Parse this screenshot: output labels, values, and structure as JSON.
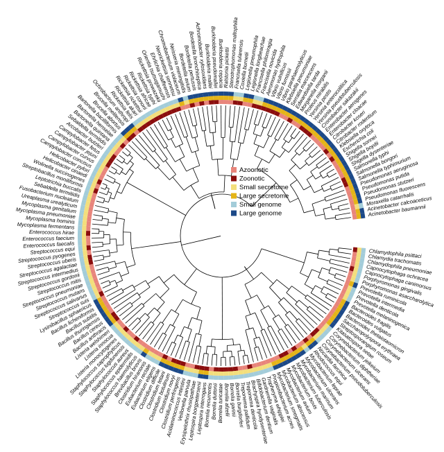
{
  "colors": {
    "azoonotic": "#e8857b",
    "zoonotic": "#8b0e0e",
    "small_secretome": "#f3de7c",
    "large_secretome": "#e4b418",
    "small_genome": "#a3ccd9",
    "large_genome": "#1c4988"
  },
  "legend": [
    {
      "label": "Azoonotic",
      "color": "#e8857b"
    },
    {
      "label": "Zoonotic",
      "color": "#8b0e0e"
    },
    {
      "label": "Small secretome",
      "color": "#f3de7c"
    },
    {
      "label": "Large secretome",
      "color": "#e4b418"
    },
    {
      "label": "Small genome",
      "color": "#a3ccd9"
    },
    {
      "label": "Large genome",
      "color": "#1c4988"
    }
  ],
  "taxa": [
    {
      "name": "Chlamydophila psittaci",
      "z": 1,
      "s": 0,
      "g": 0
    },
    {
      "name": "Chlamydia trachomatis",
      "z": 0,
      "s": 0,
      "g": 0
    },
    {
      "name": "Chlamydophila pneumoniae",
      "z": 0,
      "s": 0,
      "g": 0
    },
    {
      "name": "Capnocytophaga ochracea",
      "z": 0,
      "s": 0,
      "g": 0
    },
    {
      "name": "Capnocytophaga canimorsus",
      "z": 1,
      "s": 0,
      "g": 0
    },
    {
      "name": "Porphyromonas gingivalis",
      "z": 0,
      "s": 0,
      "g": 0
    },
    {
      "name": "Porphyromonas asaccharolytica",
      "z": 0,
      "s": 0,
      "g": 0
    },
    {
      "name": "Prevotella ruminicola",
      "z": 0,
      "s": 1,
      "g": 1
    },
    {
      "name": "Prevotella intermedia",
      "z": 0,
      "s": 0,
      "g": 0
    },
    {
      "name": "Prevotella denticola",
      "z": 0,
      "s": 0,
      "g": 0
    },
    {
      "name": "Prevotella melaninogenica",
      "z": 0,
      "s": 0,
      "g": 0
    },
    {
      "name": "Bacteroides fragilis",
      "z": 0,
      "s": 1,
      "g": 1
    },
    {
      "name": "Bacteroides vulgatus",
      "z": 0,
      "s": 1,
      "g": 1
    },
    {
      "name": "Bacteroides thetaiotaomicron",
      "z": 0,
      "s": 1,
      "g": 1
    },
    {
      "name": "Saccharopolyspora erythraea",
      "z": 0,
      "s": 1,
      "g": 1
    },
    {
      "name": "Streptosporangium roseum",
      "z": 0,
      "s": 1,
      "g": 1
    },
    {
      "name": "Kitasatospora setae",
      "z": 0,
      "s": 1,
      "g": 1
    },
    {
      "name": "Corynebacterium jeikeium",
      "z": 0,
      "s": 0,
      "g": 0
    },
    {
      "name": "Corynebacterium diphtheriae",
      "z": 0,
      "s": 0,
      "g": 0
    },
    {
      "name": "Corynebacterium ulcerans",
      "z": 1,
      "s": 0,
      "g": 0
    },
    {
      "name": "Corynebacterium pseudotuberculosis",
      "z": 1,
      "s": 0,
      "g": 0
    },
    {
      "name": "Nocardia farcinica",
      "z": 0,
      "s": 1,
      "g": 1
    },
    {
      "name": "Rhodococcus equi",
      "z": 1,
      "s": 1,
      "g": 1
    },
    {
      "name": "Mycobacterium leprae",
      "z": 0,
      "s": 0,
      "g": 0
    },
    {
      "name": "Mycobacterium ulcerans",
      "z": 0,
      "s": 1,
      "g": 1
    },
    {
      "name": "Mycobacterium marinum",
      "z": 1,
      "s": 1,
      "g": 1
    },
    {
      "name": "Mycobacterium tuberculosis",
      "z": 0,
      "s": 1,
      "g": 1
    },
    {
      "name": "Mycobacterium bovis",
      "z": 1,
      "s": 1,
      "g": 1
    },
    {
      "name": "Mycobacterium avium",
      "z": 1,
      "s": 1,
      "g": 1
    },
    {
      "name": "Mycobacterium abscessus",
      "z": 0,
      "s": 1,
      "g": 1
    },
    {
      "name": "Mycobacterium smegmatis",
      "z": 0,
      "s": 1,
      "g": 1
    },
    {
      "name": "Propionibacterium acnes",
      "z": 0,
      "s": 0,
      "g": 0
    },
    {
      "name": "Tropheryma whipplei",
      "z": 0,
      "s": 0,
      "g": 0
    },
    {
      "name": "Gardnerella vaginalis",
      "z": 0,
      "s": 0,
      "g": 0
    },
    {
      "name": "Bifidobacterium dentium",
      "z": 0,
      "s": 0,
      "g": 0
    },
    {
      "name": "Brachyspira hyodysenteriae",
      "z": 1,
      "s": 0,
      "g": 0
    },
    {
      "name": "Treponema denticola",
      "z": 0,
      "s": 0,
      "g": 0
    },
    {
      "name": "Treponema pallidum",
      "z": 0,
      "s": 0,
      "g": 0
    },
    {
      "name": "Borrelia burgdorferi",
      "z": 1,
      "s": 0,
      "g": 0
    },
    {
      "name": "Borrelia garinii",
      "z": 1,
      "s": 0,
      "g": 0
    },
    {
      "name": "Borrelia afzelii",
      "z": 1,
      "s": 0,
      "g": 0
    },
    {
      "name": "Borrelia turicatae",
      "z": 1,
      "s": 0,
      "g": 0
    },
    {
      "name": "Borrelia duttonii",
      "z": 1,
      "s": 0,
      "g": 0
    },
    {
      "name": "Borrelia recurrentis",
      "z": 0,
      "s": 0,
      "g": 0
    },
    {
      "name": "Leptospira interrogans",
      "z": 1,
      "s": 1,
      "g": 1
    },
    {
      "name": "Leptospira borgpetersenii",
      "z": 1,
      "s": 1,
      "g": 1
    },
    {
      "name": "Erysipelothrix rhusiopathiae",
      "z": 1,
      "s": 0,
      "g": 0
    },
    {
      "name": "Veillonella parvula",
      "z": 0,
      "s": 0,
      "g": 0
    },
    {
      "name": "Acidaminococcus intestini",
      "z": 0,
      "s": 0,
      "g": 0
    },
    {
      "name": "Clostridium perfringens",
      "z": 1,
      "s": 1,
      "g": 1
    },
    {
      "name": "Clostridium novyi",
      "z": 1,
      "s": 1,
      "g": 1
    },
    {
      "name": "Clostridium botulinum",
      "z": 1,
      "s": 1,
      "g": 1
    },
    {
      "name": "Clostridium tetani",
      "z": 0,
      "s": 1,
      "g": 1
    },
    {
      "name": "Clostridium difficile",
      "z": 1,
      "s": 1,
      "g": 1
    },
    {
      "name": "Eubacterium eligens",
      "z": 0,
      "s": 0,
      "g": 0
    },
    {
      "name": "Eubacterium rectale",
      "z": 0,
      "s": 0,
      "g": 0
    },
    {
      "name": "Clostridium hiranonis",
      "z": 0,
      "s": 0,
      "g": 0
    },
    {
      "name": "Brevibacillus brevis",
      "z": 0,
      "s": 1,
      "g": 1
    },
    {
      "name": "Staphylococcus haemolyticus",
      "z": 0,
      "s": 0,
      "g": 0
    },
    {
      "name": "Staphylococcus epidermidis",
      "z": 0,
      "s": 0,
      "g": 0
    },
    {
      "name": "Staphylococcus aureus",
      "z": 1,
      "s": 0,
      "g": 0
    },
    {
      "name": "Staphylococcus lugdunensis",
      "z": 0,
      "s": 0,
      "g": 0
    },
    {
      "name": "Staphylococcus saprophyticus",
      "z": 0,
      "s": 0,
      "g": 0
    },
    {
      "name": "Listeria monocytogenes",
      "z": 1,
      "s": 0,
      "g": 0
    },
    {
      "name": "Listeria innocua",
      "z": 0,
      "s": 0,
      "g": 0
    },
    {
      "name": "Listeria welshimeri",
      "z": 0,
      "s": 0,
      "g": 0
    },
    {
      "name": "Bacillus anthracis",
      "z": 1,
      "s": 1,
      "g": 1
    },
    {
      "name": "Bacillus cereus",
      "z": 1,
      "s": 1,
      "g": 1
    },
    {
      "name": "Bacillus thuringiensis",
      "z": 0,
      "s": 1,
      "g": 1
    },
    {
      "name": "Bacillus subtilis",
      "z": 0,
      "s": 1,
      "g": 1
    },
    {
      "name": "Bacillus licheniformis",
      "z": 0,
      "s": 1,
      "g": 1
    },
    {
      "name": "Lysinibacillus sphaericus",
      "z": 0,
      "s": 1,
      "g": 1
    },
    {
      "name": "Streptococcus suis",
      "z": 1,
      "s": 0,
      "g": 0
    },
    {
      "name": "Streptococcus salivarius",
      "z": 0,
      "s": 0,
      "g": 0
    },
    {
      "name": "Streptococcus mutans",
      "z": 0,
      "s": 0,
      "g": 0
    },
    {
      "name": "Streptococcus pneumoniae",
      "z": 0,
      "s": 0,
      "g": 0
    },
    {
      "name": "Streptococcus mitis",
      "z": 0,
      "s": 0,
      "g": 0
    },
    {
      "name": "Streptococcus gordonii",
      "z": 0,
      "s": 0,
      "g": 0
    },
    {
      "name": "Streptococcus intermedius",
      "z": 0,
      "s": 0,
      "g": 0
    },
    {
      "name": "Streptococcus agalactiae",
      "z": 1,
      "s": 0,
      "g": 0
    },
    {
      "name": "Streptococcus uberis",
      "z": 1,
      "s": 0,
      "g": 0
    },
    {
      "name": "Streptococcus pyogenes",
      "z": 0,
      "s": 0,
      "g": 0
    },
    {
      "name": "Streptococcus equi",
      "z": 1,
      "s": 0,
      "g": 0
    },
    {
      "name": "Enterococcus faecalis",
      "z": 0,
      "s": 0,
      "g": 0
    },
    {
      "name": "Enterococcus faecium",
      "z": 0,
      "s": 0,
      "g": 0
    },
    {
      "name": "Enterococcus hirae",
      "z": 1,
      "s": 0,
      "g": 0
    },
    {
      "name": "Mycoplasma fermentans",
      "z": 0,
      "s": 0,
      "g": 0
    },
    {
      "name": "Mycoplasma hominis",
      "z": 0,
      "s": 0,
      "g": 0
    },
    {
      "name": "Mycoplasma pneumoniae",
      "z": 0,
      "s": 0,
      "g": 0
    },
    {
      "name": "Mycoplasma genitalium",
      "z": 0,
      "s": 0,
      "g": 0
    },
    {
      "name": "Ureaplasma urealyticum",
      "z": 0,
      "s": 0,
      "g": 0
    },
    {
      "name": "Fusobacterium nucleatum",
      "z": 0,
      "s": 0,
      "g": 0
    },
    {
      "name": "Sebaldella termitidis",
      "z": 0,
      "s": 0,
      "g": 0
    },
    {
      "name": "Leptotrichia buccalis",
      "z": 0,
      "s": 0,
      "g": 0
    },
    {
      "name": "Streptobacillus moniliformis",
      "z": 1,
      "s": 0,
      "g": 0
    },
    {
      "name": "Wolinella succinogenes",
      "z": 0,
      "s": 0,
      "g": 0
    },
    {
      "name": "Helicobacter cinaedi",
      "z": 1,
      "s": 0,
      "g": 0
    },
    {
      "name": "Helicobacter pylori",
      "z": 0,
      "s": 0,
      "g": 0
    },
    {
      "name": "Campylobacter concisus",
      "z": 0,
      "s": 0,
      "g": 0
    },
    {
      "name": "Campylobacter curvus",
      "z": 0,
      "s": 0,
      "g": 0
    },
    {
      "name": "Campylobacter jejuni",
      "z": 1,
      "s": 0,
      "g": 0
    },
    {
      "name": "Campylobacter fetus",
      "z": 1,
      "s": 0,
      "g": 0
    },
    {
      "name": "Arcobacter butzleri",
      "z": 1,
      "s": 0,
      "g": 0
    },
    {
      "name": "Sebaldella termitidis",
      "z": 0,
      "s": 0,
      "g": 0
    },
    {
      "name": "Bartonella quintana",
      "z": 0,
      "s": 0,
      "g": 0
    },
    {
      "name": "Bartonella henselae",
      "z": 1,
      "s": 0,
      "g": 0
    },
    {
      "name": "Bartonella bacilliformis",
      "z": 0,
      "s": 0,
      "g": 0
    },
    {
      "name": "Brucella abortus",
      "z": 1,
      "s": 1,
      "g": 1
    },
    {
      "name": "Brucella melitensis",
      "z": 1,
      "s": 1,
      "g": 1
    },
    {
      "name": "Ochrobactrum anthropi",
      "z": 0,
      "s": 1,
      "g": 1
    },
    {
      "name": "Rickettsia felis",
      "z": 1,
      "s": 0,
      "g": 0
    },
    {
      "name": "Rickettsia akari",
      "z": 1,
      "s": 0,
      "g": 0
    },
    {
      "name": "Rickettsia rickettsii",
      "z": 1,
      "s": 0,
      "g": 0
    },
    {
      "name": "Rickettsia conorii",
      "z": 1,
      "s": 0,
      "g": 0
    },
    {
      "name": "Rickettsia africae",
      "z": 1,
      "s": 0,
      "g": 0
    },
    {
      "name": "Rickettsia typhi",
      "z": 1,
      "s": 0,
      "g": 0
    },
    {
      "name": "Rickettsia prowazekii",
      "z": 1,
      "s": 0,
      "g": 0
    },
    {
      "name": "Orientia tsutsugamushi",
      "z": 1,
      "s": 0,
      "g": 0
    },
    {
      "name": "Ehrlichia chaffeensis",
      "z": 1,
      "s": 0,
      "g": 0
    },
    {
      "name": "Neorickettsia sennetsu",
      "z": 1,
      "s": 0,
      "g": 0
    },
    {
      "name": "Chromobacterium violaceum",
      "z": 0,
      "s": 1,
      "g": 1
    },
    {
      "name": "Neisseria meningitidis",
      "z": 0,
      "s": 0,
      "g": 0
    },
    {
      "name": "Bordetella avium",
      "z": 1,
      "s": 1,
      "g": 1
    },
    {
      "name": "Bordetella pertussis",
      "z": 0,
      "s": 1,
      "g": 1
    },
    {
      "name": "Bordetella bronchiseptica",
      "z": 1,
      "s": 1,
      "g": 1
    },
    {
      "name": "Achromobacter xylosoxidans",
      "z": 0,
      "s": 1,
      "g": 1
    },
    {
      "name": "Burkholderia mallei",
      "z": 1,
      "s": 1,
      "g": 1
    },
    {
      "name": "Burkholderia pseudomallei",
      "z": 1,
      "s": 1,
      "g": 1
    },
    {
      "name": "Burkholderia cepacia",
      "z": 0,
      "s": 1,
      "g": 1
    },
    {
      "name": "Ralstonia pickettii",
      "z": 0,
      "s": 1,
      "g": 1
    },
    {
      "name": "Stenotrophomonas maltophilia",
      "z": 0,
      "s": 1,
      "g": 1
    },
    {
      "name": "Francisella tularensis",
      "z": 1,
      "s": 0,
      "g": 0
    },
    {
      "name": "Coxiella burnetii",
      "z": 1,
      "s": 0,
      "g": 0
    },
    {
      "name": "Legionella pneumophila",
      "z": 0,
      "s": 1,
      "g": 1
    },
    {
      "name": "Legionella longbeachae",
      "z": 0,
      "s": 1,
      "g": 1
    },
    {
      "name": "Francisella philomiragia",
      "z": 1,
      "s": 0,
      "g": 0
    },
    {
      "name": "Francisella novicida",
      "z": 1,
      "s": 0,
      "g": 0
    },
    {
      "name": "Aeromonas hydrophila",
      "z": 1,
      "s": 1,
      "g": 1
    },
    {
      "name": "Vibrio vulnificus",
      "z": 1,
      "s": 1,
      "g": 1
    },
    {
      "name": "Vibrio furnissii",
      "z": 1,
      "s": 1,
      "g": 1
    },
    {
      "name": "Vibrio parahaemolyticus",
      "z": 1,
      "s": 1,
      "g": 1
    },
    {
      "name": "Klebsiella pneumoniae",
      "z": 0,
      "s": 1,
      "g": 1
    },
    {
      "name": "Serratia marcescens",
      "z": 0,
      "s": 1,
      "g": 1
    },
    {
      "name": "Edwardsiella tarda",
      "z": 1,
      "s": 1,
      "g": 1
    },
    {
      "name": "Morganella morganii",
      "z": 0,
      "s": 1,
      "g": 1
    },
    {
      "name": "Proteus mirabilis",
      "z": 0,
      "s": 1,
      "g": 1
    },
    {
      "name": "Yersinia pestis",
      "z": 1,
      "s": 1,
      "g": 1
    },
    {
      "name": "Yersinia enterocolitica",
      "z": 1,
      "s": 1,
      "g": 1
    },
    {
      "name": "Yersinia pseudotuberculosis",
      "z": 1,
      "s": 1,
      "g": 1
    },
    {
      "name": "Cronobacter sakazakii",
      "z": 0,
      "s": 1,
      "g": 1
    },
    {
      "name": "Enterobacter aerogenes",
      "z": 0,
      "s": 1,
      "g": 1
    },
    {
      "name": "Enterobacter cloacae",
      "z": 0,
      "s": 1,
      "g": 1
    },
    {
      "name": "Citrobacter koseri",
      "z": 0,
      "s": 1,
      "g": 1
    },
    {
      "name": "Citrobacter rodentium",
      "z": 1,
      "s": 1,
      "g": 1
    },
    {
      "name": "Klebsiella oxytoca",
      "z": 0,
      "s": 1,
      "g": 1
    },
    {
      "name": "Escherichia coli",
      "z": 1,
      "s": 1,
      "g": 1
    },
    {
      "name": "Shigella sonnei",
      "z": 0,
      "s": 1,
      "g": 1
    },
    {
      "name": "Shigella boydii",
      "z": 0,
      "s": 1,
      "g": 1
    },
    {
      "name": "Shigella dysenteriae",
      "z": 0,
      "s": 1,
      "g": 1
    },
    {
      "name": "Salmonella typhi",
      "z": 0,
      "s": 1,
      "g": 1
    },
    {
      "name": "Salmonella bongori",
      "z": 1,
      "s": 1,
      "g": 1
    },
    {
      "name": "Salmonella typhimurium",
      "z": 1,
      "s": 1,
      "g": 1
    },
    {
      "name": "Pseudomonas aeruginosa",
      "z": 0,
      "s": 1,
      "g": 1
    },
    {
      "name": "Pseudomonas putida",
      "z": 0,
      "s": 1,
      "g": 1
    },
    {
      "name": "Pseudomonas stutzeri",
      "z": 0,
      "s": 1,
      "g": 1
    },
    {
      "name": "Pseudomonas fluorescens",
      "z": 0,
      "s": 1,
      "g": 1
    },
    {
      "name": "Moraxella catarrhalis",
      "z": 0,
      "s": 0,
      "g": 0
    },
    {
      "name": "Acinetobacter calcoaceticus",
      "z": 0,
      "s": 1,
      "g": 1
    },
    {
      "name": "Acinetobacter baumannii",
      "z": 0,
      "s": 1,
      "g": 1
    }
  ]
}
